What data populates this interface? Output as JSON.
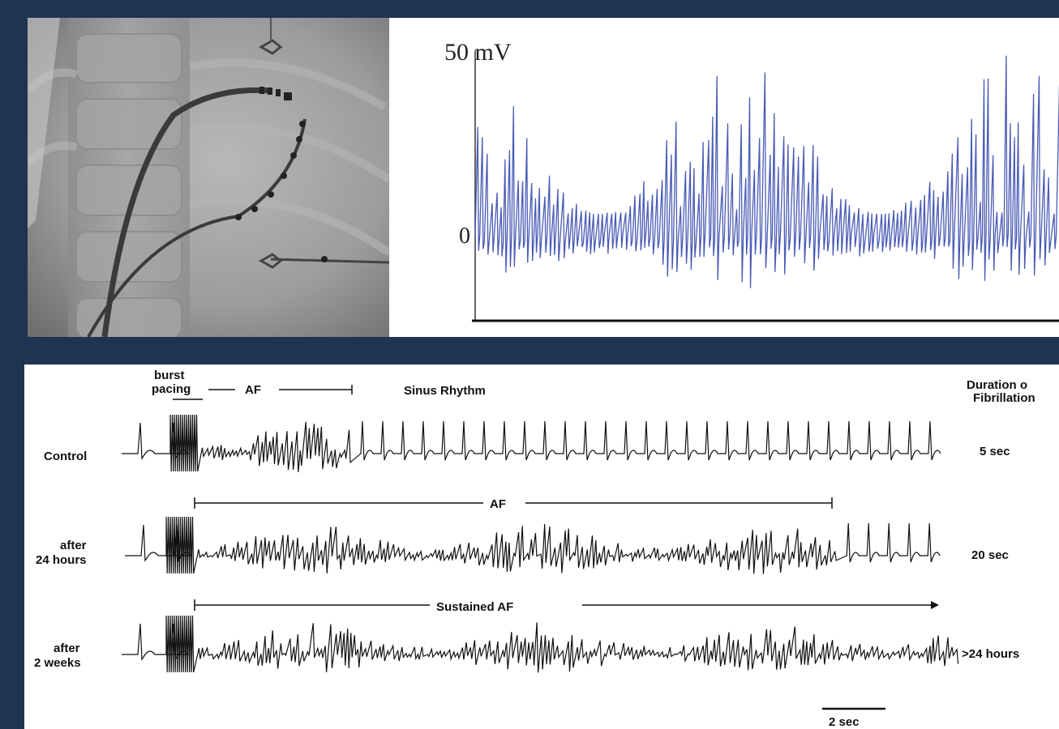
{
  "xray_panel": {
    "description_icon": "fluoroscopy-catheter-image"
  },
  "egm_panel": {
    "y_top_label": "50 mV",
    "y_zero_label": "0",
    "trace_color": "#4a5bb5"
  },
  "ecg_panel": {
    "header": {
      "burst_label_line1": "burst",
      "burst_label_line2": "pacing",
      "af_label": "AF",
      "sinus_label": "Sinus Rhythm",
      "duration_line1": "Duration o",
      "duration_line2": "Fibrillation"
    },
    "rows": [
      {
        "label_line1": "Control",
        "label_line2": "",
        "duration": "5 sec"
      },
      {
        "label_line1": "after",
        "label_line2": "24 hours",
        "span_label": "AF",
        "duration": "20 sec"
      },
      {
        "label_line1": "after",
        "label_line2": "2 weeks",
        "span_label": "Sustained AF",
        "duration": ">24 hours"
      }
    ],
    "scale_bar_label": "2 sec"
  }
}
